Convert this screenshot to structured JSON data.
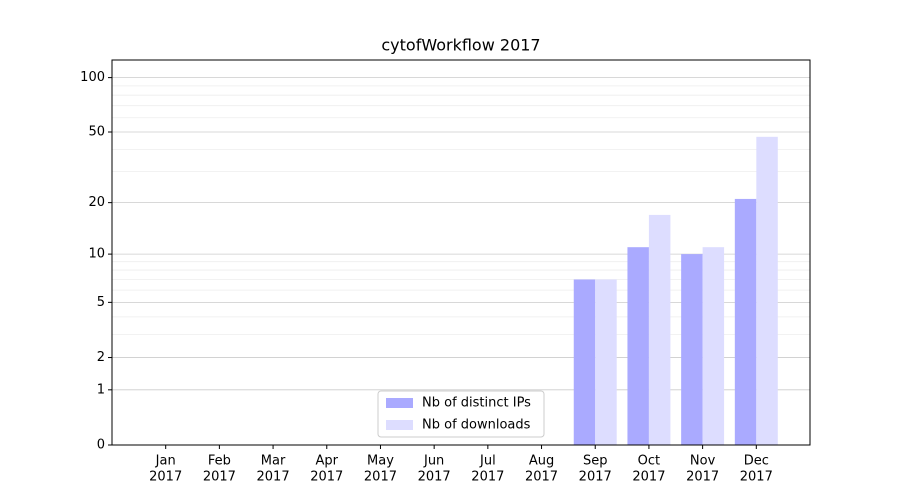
{
  "chart_data": {
    "type": "bar",
    "title": "cytofWorkflow 2017",
    "categories": [
      [
        "Jan",
        "2017"
      ],
      [
        "Feb",
        "2017"
      ],
      [
        "Mar",
        "2017"
      ],
      [
        "Apr",
        "2017"
      ],
      [
        "May",
        "2017"
      ],
      [
        "Jun",
        "2017"
      ],
      [
        "Jul",
        "2017"
      ],
      [
        "Aug",
        "2017"
      ],
      [
        "Sep",
        "2017"
      ],
      [
        "Oct",
        "2017"
      ],
      [
        "Nov",
        "2017"
      ],
      [
        "Dec",
        "2017"
      ]
    ],
    "series": [
      {
        "name": "Nb of distinct IPs",
        "color": "#aaaaff",
        "values": [
          0,
          0,
          0,
          0,
          0,
          0,
          0,
          0,
          7,
          11,
          10,
          21
        ]
      },
      {
        "name": "Nb of downloads",
        "color": "#ddddff",
        "values": [
          0,
          0,
          0,
          0,
          0,
          0,
          0,
          0,
          7,
          17,
          11,
          47
        ]
      }
    ],
    "yscale": "log1p",
    "ylim": [
      0,
      125
    ],
    "yticks": [
      0,
      1,
      2,
      5,
      10,
      20,
      50,
      100
    ],
    "minor_yticks": [
      3,
      4,
      6,
      7,
      8,
      9,
      30,
      40,
      60,
      70,
      80,
      90
    ],
    "grid": true,
    "legend": "lower center"
  }
}
